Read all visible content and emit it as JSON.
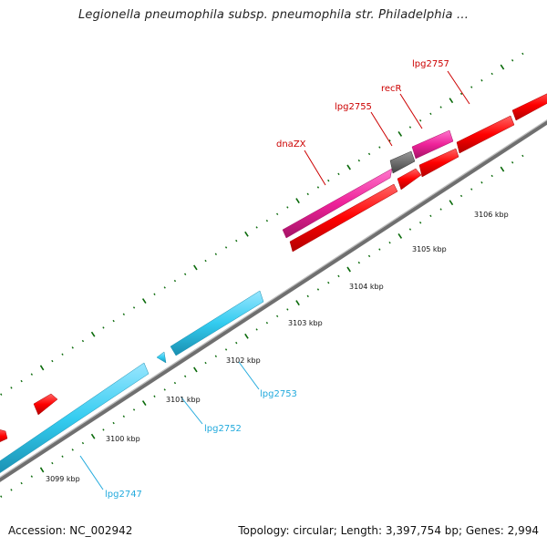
{
  "title": "Legionella pneumophila subsp. pneumophila str. Philadelphia ...",
  "footer": {
    "accession": "Accession: NC_002942",
    "summary": "Topology: circular; Length: 3,397,754 bp; Genes: 2,994"
  },
  "colors": {
    "forward_gene": "#ff0000",
    "reverse_gene": "#33ccf0",
    "highlight_gene": "#ee2299",
    "grey_gene": "#666666",
    "backbone": "#888888",
    "tick": "#0a6a0a",
    "forward_label": "#cc0000",
    "reverse_label": "#22aadd"
  },
  "ticks": [
    {
      "label": "3099 kbp"
    },
    {
      "label": "3100 kbp"
    },
    {
      "label": "3101 kbp"
    },
    {
      "label": "3102 kbp"
    },
    {
      "label": "3103 kbp"
    },
    {
      "label": "3104 kbp"
    },
    {
      "label": "3105 kbp"
    },
    {
      "label": "3106 kbp"
    }
  ],
  "forward_labels": [
    {
      "text": "dnaZX"
    },
    {
      "text": "lpg2755"
    },
    {
      "text": "recR"
    },
    {
      "text": "lpg2757"
    }
  ],
  "reverse_labels": [
    {
      "text": "lpg2747"
    },
    {
      "text": "lpg2752"
    },
    {
      "text": "lpg2753"
    }
  ]
}
